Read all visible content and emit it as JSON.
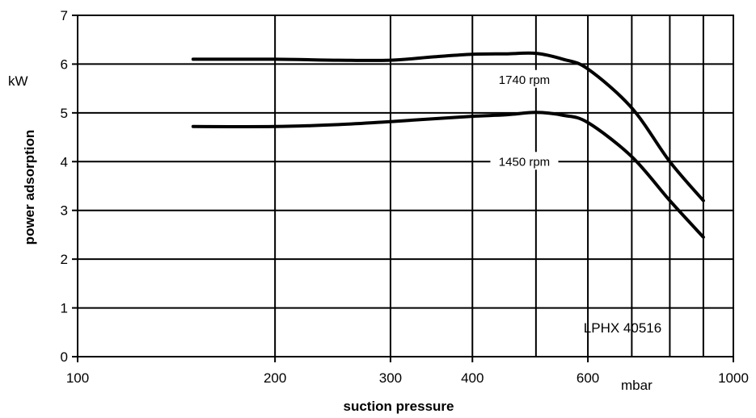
{
  "chart_data": {
    "type": "line",
    "title": "",
    "xlabel": "suction pressure",
    "ylabel": "power adsorption",
    "x_unit": "mbar",
    "y_unit": "kW",
    "x_scale": "log",
    "xlim": [
      100,
      1000
    ],
    "ylim": [
      0,
      7
    ],
    "x_tick_labels": [
      {
        "value": 100,
        "label": "100"
      },
      {
        "value": 200,
        "label": "200"
      },
      {
        "value": 300,
        "label": "300"
      },
      {
        "value": 400,
        "label": "400"
      },
      {
        "value": 600,
        "label": "600"
      },
      {
        "value": 1000,
        "label": "1000"
      }
    ],
    "x_gridlines": [
      200,
      300,
      400,
      500,
      600,
      700,
      800,
      900
    ],
    "y_ticks": [
      0,
      1,
      2,
      3,
      4,
      5,
      6,
      7
    ],
    "grid": true,
    "annotation": "LPHX 40516",
    "series": [
      {
        "name": "1740 rpm",
        "x": [
          150,
          200,
          250,
          300,
          350,
          400,
          450,
          500,
          550,
          600,
          700,
          800,
          900
        ],
        "y": [
          6.1,
          6.1,
          6.08,
          6.08,
          6.15,
          6.2,
          6.21,
          6.22,
          6.1,
          5.9,
          5.1,
          4.0,
          3.2
        ]
      },
      {
        "name": "1450 rpm",
        "x": [
          150,
          200,
          250,
          300,
          350,
          400,
          450,
          500,
          550,
          600,
          700,
          800,
          900
        ],
        "y": [
          4.72,
          4.72,
          4.76,
          4.82,
          4.88,
          4.93,
          4.96,
          5.01,
          4.95,
          4.8,
          4.1,
          3.2,
          2.45
        ]
      }
    ]
  }
}
